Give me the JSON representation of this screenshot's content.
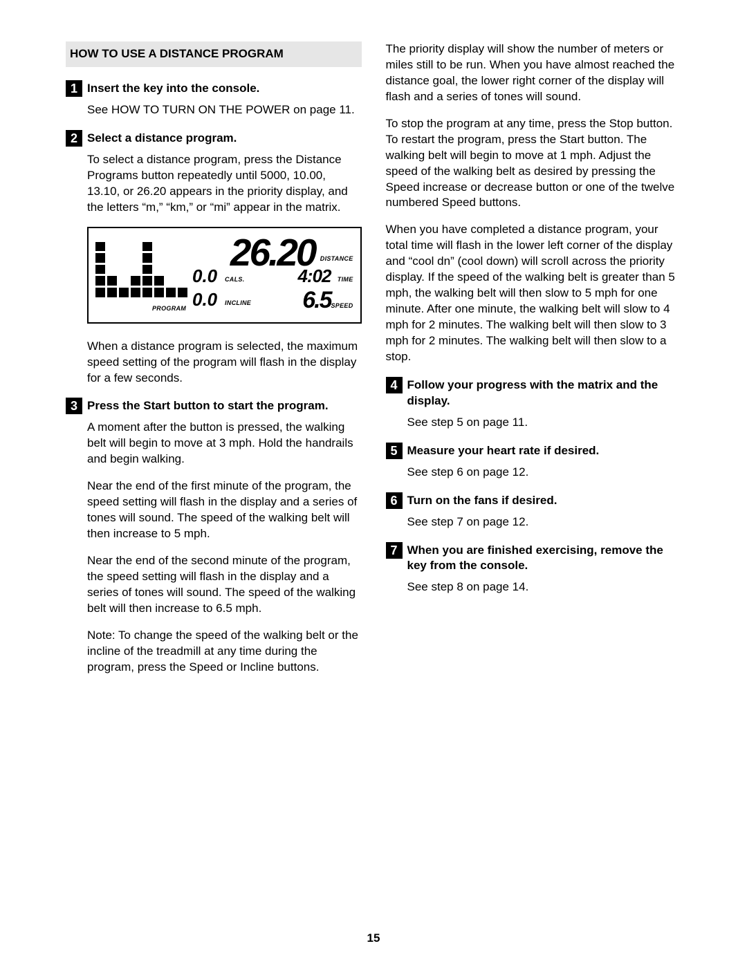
{
  "page_number": "15",
  "left": {
    "header": "HOW TO USE A DISTANCE PROGRAM",
    "steps": [
      {
        "num": "1",
        "title": "Insert the key into the console.",
        "paras": [
          "See HOW TO TURN ON THE POWER on page 11."
        ]
      },
      {
        "num": "2",
        "title": "Select a distance program.",
        "paras": [
          "To select a distance program, press the Distance Programs button repeatedly until 5000, 10.00, 13.10, or 26.20 appears in the priority display, and the letters “m,” “km,” or “mi” appear in the matrix."
        ],
        "after_fig_paras": [
          "When a distance program is selected, the maximum speed setting of the program will flash in the display for a few seconds."
        ]
      },
      {
        "num": "3",
        "title": "Press the Start button to start the program.",
        "paras": [
          "A moment after the button is pressed, the walking belt will begin to move at 3 mph. Hold the handrails and begin walking.",
          "Near the end of the first minute of the program, the speed setting will flash in the display and a series of tones will sound. The speed of the walking belt will then increase to 5 mph.",
          "Near the end of the second minute of the program, the speed setting will flash in the display and a series of tones will sound. The speed of the walking belt will then increase to 6.5 mph.",
          "Note: To change the speed of the walking belt or the incline of the treadmill at any time during the program, press the Speed or Incline buttons."
        ]
      }
    ],
    "display": {
      "distance_value": "26.20",
      "distance_label": "DISTANCE",
      "cals_value": "0.0",
      "cals_label": "CALS.",
      "time_value": "4:02",
      "time_label": "TIME",
      "incline_value": "0.0",
      "incline_label": "INCLINE",
      "speed_value": "6.5",
      "speed_label": "SPEED",
      "program_label": "PROGRAM",
      "matrix_cols": [
        5,
        2,
        1,
        2,
        5,
        2,
        1,
        1
      ]
    }
  },
  "right": {
    "lead_paras": [
      "The priority display will show the number of meters or miles still to be run. When you have almost reached the distance goal, the lower right corner of the display will flash and a series of tones will sound.",
      "To stop the program at any time, press the Stop button. To restart the program, press the Start button. The walking belt will begin to move at 1 mph. Adjust the speed of the walking belt as desired by pressing the Speed increase or decrease button or one of the twelve numbered Speed buttons.",
      "When you have completed a distance program, your total time will flash in the lower left corner of the display and “cool dn” (cool down) will scroll across the priority display. If the speed of the walking belt is greater than 5 mph, the walking belt will then slow to 5 mph for one minute. After one minute, the walking belt will slow to 4 mph for 2 minutes. The walking belt will then slow to 3 mph for 2 minutes. The walking belt will then slow to a stop."
    ],
    "steps": [
      {
        "num": "4",
        "title": "Follow your progress with the matrix and the display.",
        "paras": [
          "See step 5 on page 11."
        ]
      },
      {
        "num": "5",
        "title": "Measure your heart rate if desired.",
        "paras": [
          "See step 6 on page 12."
        ]
      },
      {
        "num": "6",
        "title": "Turn on the fans if desired.",
        "paras": [
          "See step 7 on page 12."
        ]
      },
      {
        "num": "7",
        "title": "When you are finished exercising, remove the key from the console.",
        "paras": [
          "See step 8 on page 14."
        ]
      }
    ]
  }
}
